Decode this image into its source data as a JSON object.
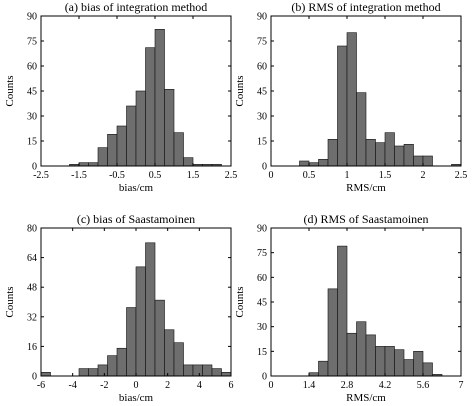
{
  "chart_data": [
    {
      "type": "bar",
      "title": "(a) bias of integration method",
      "xlabel": "bias/cm",
      "ylabel": "Counts",
      "xlim": [
        -2.5,
        2.5
      ],
      "ylim": [
        0,
        90
      ],
      "xticks": [
        -2.5,
        -1.5,
        -0.5,
        0.5,
        1.5,
        2.5
      ],
      "xtick_labels": [
        "-2.5",
        "-1.5",
        "-0.5",
        "0.5",
        "1.5",
        "2.5"
      ],
      "yticks": [
        0,
        15,
        30,
        45,
        60,
        75,
        90
      ],
      "ytick_labels": [
        "0",
        "15",
        "30",
        "45",
        "60",
        "75",
        "90"
      ],
      "bin_width": 0.25,
      "bin_left_edges": [
        -1.75,
        -1.5,
        -1.25,
        -1.0,
        -0.75,
        -0.5,
        -0.25,
        0.0,
        0.25,
        0.5,
        0.75,
        1.0,
        1.25,
        1.5,
        1.75,
        2.0
      ],
      "values": [
        1,
        2,
        2,
        11,
        19,
        24,
        36,
        45,
        71,
        82,
        46,
        20,
        5,
        1,
        1,
        1
      ]
    },
    {
      "type": "bar",
      "title": "(b) RMS of integration method",
      "xlabel": "RMS/cm",
      "ylabel": "Counts",
      "xlim": [
        0,
        2.5
      ],
      "ylim": [
        0,
        90
      ],
      "xticks": [
        0,
        0.5,
        1,
        1.5,
        2,
        2.5
      ],
      "xtick_labels": [
        "0",
        "0.5",
        "1",
        "1.5",
        "2",
        "2.5"
      ],
      "yticks": [
        0,
        15,
        30,
        45,
        60,
        75,
        90
      ],
      "ytick_labels": [
        "0",
        "15",
        "30",
        "45",
        "60",
        "75",
        "90"
      ],
      "bin_width": 0.125,
      "bin_left_edges": [
        0.25,
        0.375,
        0.5,
        0.625,
        0.75,
        0.875,
        1.0,
        1.125,
        1.25,
        1.375,
        1.5,
        1.625,
        1.75,
        1.875,
        2.0,
        2.125,
        2.25,
        2.375
      ],
      "values": [
        0,
        3,
        2,
        4,
        16,
        72,
        80,
        44,
        16,
        14,
        20,
        12,
        13,
        6,
        6,
        0,
        0,
        1
      ]
    },
    {
      "type": "bar",
      "title": "(c) bias of Saastamoinen",
      "xlabel": "bias/cm",
      "ylabel": "Counts",
      "xlim": [
        -6,
        6
      ],
      "ylim": [
        0,
        80
      ],
      "xticks": [
        -6,
        -4,
        -2,
        0,
        2,
        4,
        6
      ],
      "xtick_labels": [
        "-6",
        "-4",
        "-2",
        "0",
        "2",
        "4",
        "6"
      ],
      "yticks": [
        0,
        16,
        32,
        48,
        64,
        80
      ],
      "ytick_labels": [
        "0",
        "16",
        "32",
        "48",
        "64",
        "80"
      ],
      "bin_width": 0.6,
      "bin_left_edges": [
        -6.0,
        -5.4,
        -4.8,
        -4.2,
        -3.6,
        -3.0,
        -2.4,
        -1.8,
        -1.2,
        -0.6,
        0.0,
        0.6,
        1.2,
        1.8,
        2.4,
        3.0,
        3.6,
        4.2,
        4.8,
        5.4
      ],
      "values": [
        2,
        0,
        0,
        0,
        4,
        4,
        6,
        11,
        15,
        37,
        59,
        72,
        41,
        25,
        18,
        6,
        6,
        6,
        4,
        2
      ]
    },
    {
      "type": "bar",
      "title": "(d) RMS of Saastamoinen",
      "xlabel": "RMS/cm",
      "ylabel": "Counts",
      "xlim": [
        0,
        7
      ],
      "ylim": [
        0,
        90
      ],
      "xticks": [
        0,
        1.4,
        2.8,
        4.2,
        5.6,
        7
      ],
      "xtick_labels": [
        "0",
        "1.4",
        "2.8",
        "4.2",
        "5.6",
        "7"
      ],
      "yticks": [
        0,
        15,
        30,
        45,
        60,
        75,
        90
      ],
      "ytick_labels": [
        "0",
        "15",
        "30",
        "45",
        "60",
        "75",
        "90"
      ],
      "bin_width": 0.35,
      "bin_left_edges": [
        1.4,
        1.75,
        2.1,
        2.45,
        2.8,
        3.15,
        3.5,
        3.85,
        4.2,
        4.55,
        4.9,
        5.25,
        5.6,
        5.95
      ],
      "values": [
        2,
        9,
        53,
        79,
        26,
        33,
        25,
        18,
        18,
        16,
        10,
        15,
        8,
        1
      ]
    }
  ]
}
